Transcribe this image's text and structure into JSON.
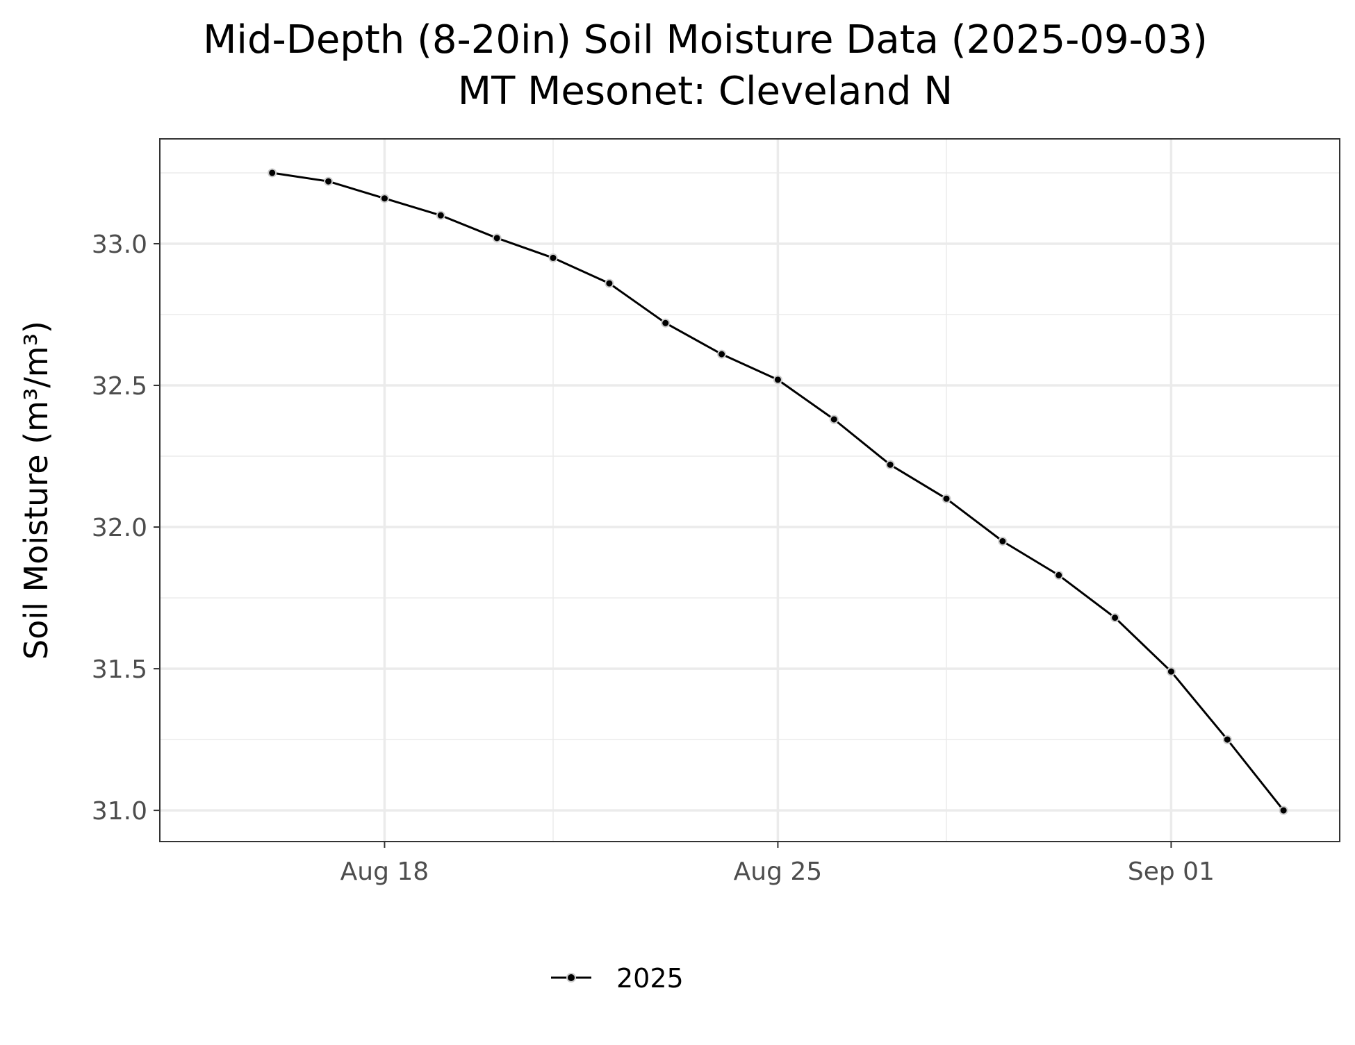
{
  "chart_data": {
    "type": "line",
    "title": "Mid-Depth (8-20in) Soil Moisture Data (2025-09-03)",
    "subtitle": "MT Mesonet: Cleveland N",
    "xlabel": "",
    "ylabel": "Soil Moisture (m³/m³)",
    "xlim": [
      "2025-08-14",
      "2025-09-04"
    ],
    "ylim": [
      30.89,
      33.37
    ],
    "x_ticks": [
      {
        "date": "2025-08-18",
        "label": "Aug 18"
      },
      {
        "date": "2025-08-25",
        "label": "Aug 25"
      },
      {
        "date": "2025-09-01",
        "label": "Sep 01"
      }
    ],
    "x_minor_ticks": [
      "2025-08-21",
      "2025-08-28"
    ],
    "y_ticks": [
      {
        "value": 31.0,
        "label": "31.0"
      },
      {
        "value": 31.5,
        "label": "31.5"
      },
      {
        "value": 32.0,
        "label": "32.0"
      },
      {
        "value": 32.5,
        "label": "32.5"
      },
      {
        "value": 33.0,
        "label": "33.0"
      }
    ],
    "y_minor_ticks": [
      31.25,
      31.75,
      32.25,
      32.75,
      33.25
    ],
    "grid": true,
    "legend_position": "bottom",
    "line_color": "#000000",
    "series": [
      {
        "name": "2025",
        "x": [
          "2025-08-16",
          "2025-08-17",
          "2025-08-18",
          "2025-08-19",
          "2025-08-20",
          "2025-08-21",
          "2025-08-22",
          "2025-08-23",
          "2025-08-24",
          "2025-08-25",
          "2025-08-26",
          "2025-08-27",
          "2025-08-28",
          "2025-08-29",
          "2025-08-30",
          "2025-08-31",
          "2025-09-01",
          "2025-09-02",
          "2025-09-03"
        ],
        "y": [
          33.25,
          33.22,
          33.16,
          33.1,
          33.02,
          32.95,
          32.86,
          32.72,
          32.61,
          32.52,
          32.38,
          32.22,
          32.1,
          31.95,
          31.83,
          31.68,
          31.49,
          31.25,
          31.0
        ]
      }
    ]
  }
}
